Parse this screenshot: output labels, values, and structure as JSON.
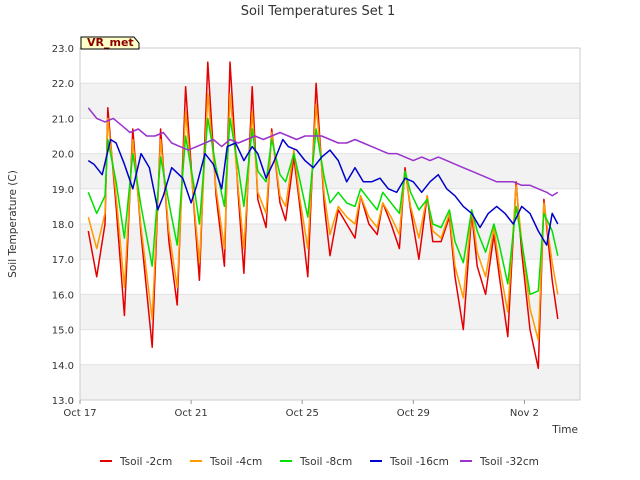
{
  "chart_data": {
    "type": "line",
    "title": "Soil Temperatures Set 1",
    "xlabel": "Time",
    "ylabel": "Soil Temperature (C)",
    "badge": "VR_met",
    "ylim": [
      13.0,
      23.0
    ],
    "y_ticks": [
      "13.0",
      "14.0",
      "15.0",
      "16.0",
      "17.0",
      "18.0",
      "19.0",
      "20.0",
      "21.0",
      "22.0",
      "23.0"
    ],
    "x_range_days": [
      0,
      18
    ],
    "x_ticks": [
      {
        "label": "Oct 17",
        "day": 0
      },
      {
        "label": "Oct 21",
        "day": 4
      },
      {
        "label": "Oct 25",
        "day": 8
      },
      {
        "label": "Oct 29",
        "day": 12
      },
      {
        "label": "Nov 2",
        "day": 16
      }
    ],
    "grid": "horizontal bands",
    "legend_position": "bottom",
    "series": [
      {
        "name": "Tsoil -2cm",
        "color": "#e50000",
        "x": [
          0.3,
          0.6,
          0.9,
          1.0,
          1.3,
          1.6,
          1.9,
          2.2,
          2.6,
          2.9,
          3.2,
          3.5,
          3.8,
          4.1,
          4.3,
          4.6,
          4.9,
          5.2,
          5.4,
          5.7,
          5.9,
          6.2,
          6.4,
          6.7,
          6.9,
          7.2,
          7.4,
          7.7,
          7.9,
          8.2,
          8.5,
          8.8,
          9.0,
          9.3,
          9.6,
          9.9,
          10.1,
          10.4,
          10.7,
          10.9,
          11.2,
          11.5,
          11.7,
          11.9,
          12.2,
          12.5,
          12.7,
          13.0,
          13.3,
          13.5,
          13.8,
          14.1,
          14.3,
          14.6,
          14.9,
          15.1,
          15.4,
          15.7,
          15.9,
          16.2,
          16.5,
          16.7,
          17.0,
          17.2
        ],
        "y": [
          17.8,
          16.5,
          18.0,
          21.3,
          18.5,
          15.4,
          20.7,
          17.7,
          14.5,
          20.7,
          17.5,
          15.7,
          21.9,
          18.5,
          16.4,
          22.6,
          18.8,
          16.8,
          22.6,
          18.8,
          16.6,
          21.9,
          18.7,
          17.9,
          20.7,
          18.6,
          18.1,
          19.9,
          18.6,
          16.5,
          22.0,
          18.5,
          17.1,
          18.4,
          18.0,
          17.6,
          18.8,
          18.0,
          17.7,
          18.6,
          18.0,
          17.3,
          19.6,
          18.4,
          17.0,
          18.8,
          17.5,
          17.5,
          18.2,
          16.5,
          15.0,
          18.3,
          16.8,
          16.0,
          17.7,
          16.5,
          14.8,
          19.2,
          17.2,
          15.0,
          13.9,
          18.7,
          16.4,
          15.3
        ]
      },
      {
        "name": "Tsoil -4cm",
        "color": "#ff9a00",
        "x": [
          0.3,
          0.6,
          0.9,
          1.0,
          1.3,
          1.6,
          1.9,
          2.2,
          2.6,
          2.9,
          3.2,
          3.5,
          3.8,
          4.1,
          4.3,
          4.6,
          4.9,
          5.2,
          5.4,
          5.7,
          5.9,
          6.2,
          6.4,
          6.7,
          6.9,
          7.2,
          7.4,
          7.7,
          7.9,
          8.2,
          8.5,
          8.8,
          9.0,
          9.3,
          9.6,
          9.9,
          10.1,
          10.4,
          10.7,
          10.9,
          11.2,
          11.5,
          11.7,
          11.9,
          12.2,
          12.5,
          12.7,
          13.0,
          13.3,
          13.5,
          13.8,
          14.1,
          14.3,
          14.6,
          14.9,
          15.1,
          15.4,
          15.7,
          15.9,
          16.2,
          16.5,
          16.7,
          17.0,
          17.2
        ],
        "y": [
          18.2,
          17.3,
          18.3,
          21.0,
          18.8,
          16.2,
          20.4,
          17.9,
          15.3,
          20.4,
          17.8,
          16.2,
          21.2,
          18.6,
          16.9,
          21.7,
          19.0,
          17.3,
          21.7,
          19.0,
          17.3,
          21.2,
          18.9,
          18.3,
          20.6,
          18.8,
          18.5,
          20.1,
          18.8,
          17.3,
          21.4,
          18.8,
          17.7,
          18.5,
          18.2,
          18.0,
          18.8,
          18.2,
          17.9,
          18.6,
          18.2,
          17.7,
          19.5,
          18.5,
          17.6,
          18.8,
          17.8,
          17.6,
          18.3,
          16.8,
          15.9,
          18.4,
          17.2,
          16.5,
          17.9,
          16.8,
          15.5,
          19.1,
          17.5,
          15.6,
          14.7,
          18.6,
          16.9,
          16.0
        ]
      },
      {
        "name": "Tsoil -8cm",
        "color": "#00e000",
        "x": [
          0.3,
          0.6,
          0.9,
          1.0,
          1.3,
          1.6,
          1.9,
          2.2,
          2.6,
          2.9,
          3.2,
          3.5,
          3.8,
          4.1,
          4.3,
          4.6,
          4.9,
          5.2,
          5.4,
          5.7,
          5.9,
          6.2,
          6.4,
          6.7,
          6.9,
          7.2,
          7.4,
          7.7,
          7.9,
          8.2,
          8.5,
          8.8,
          9.0,
          9.3,
          9.6,
          9.9,
          10.1,
          10.4,
          10.7,
          10.9,
          11.2,
          11.5,
          11.7,
          11.9,
          12.2,
          12.5,
          12.7,
          13.0,
          13.3,
          13.5,
          13.8,
          14.1,
          14.3,
          14.6,
          14.9,
          15.1,
          15.4,
          15.7,
          15.9,
          16.2,
          16.5,
          16.7,
          17.0,
          17.2
        ],
        "y": [
          18.9,
          18.3,
          18.8,
          20.4,
          19.2,
          17.6,
          20.0,
          18.5,
          16.8,
          19.9,
          18.6,
          17.4,
          20.5,
          19.1,
          18.0,
          21.0,
          19.6,
          18.5,
          21.0,
          19.6,
          18.5,
          20.7,
          19.5,
          19.2,
          20.4,
          19.4,
          19.2,
          20.0,
          19.3,
          18.2,
          20.7,
          19.3,
          18.6,
          18.9,
          18.6,
          18.5,
          19.0,
          18.7,
          18.4,
          18.9,
          18.6,
          18.3,
          19.5,
          18.9,
          18.4,
          18.7,
          18.0,
          17.9,
          18.4,
          17.5,
          16.9,
          18.4,
          17.8,
          17.2,
          18.0,
          17.4,
          16.3,
          18.5,
          17.5,
          16.0,
          16.1,
          18.3,
          17.8,
          17.1
        ]
      },
      {
        "name": "Tsoil -16cm",
        "color": "#0000cc",
        "x": [
          0.3,
          0.5,
          0.8,
          1.1,
          1.3,
          1.6,
          1.9,
          2.2,
          2.5,
          2.8,
          3.0,
          3.3,
          3.7,
          4.0,
          4.2,
          4.5,
          4.8,
          5.1,
          5.3,
          5.6,
          5.9,
          6.2,
          6.4,
          6.7,
          7.0,
          7.3,
          7.5,
          7.8,
          8.1,
          8.4,
          8.7,
          9.0,
          9.3,
          9.6,
          9.9,
          10.2,
          10.5,
          10.8,
          11.1,
          11.4,
          11.7,
          12.0,
          12.3,
          12.6,
          12.9,
          13.2,
          13.5,
          13.8,
          14.1,
          14.4,
          14.7,
          15.0,
          15.3,
          15.6,
          15.9,
          16.2,
          16.5,
          16.8,
          17.0,
          17.2
        ],
        "y": [
          19.8,
          19.7,
          19.4,
          20.4,
          20.3,
          19.7,
          19.0,
          20.0,
          19.6,
          18.4,
          18.8,
          19.6,
          19.3,
          18.6,
          19.1,
          20.0,
          19.7,
          19.0,
          20.2,
          20.3,
          19.8,
          20.2,
          20.0,
          19.3,
          19.8,
          20.4,
          20.2,
          20.1,
          19.8,
          19.6,
          19.9,
          20.1,
          19.8,
          19.2,
          19.6,
          19.2,
          19.2,
          19.3,
          19.0,
          18.9,
          19.3,
          19.2,
          18.9,
          19.2,
          19.4,
          19.0,
          18.8,
          18.5,
          18.3,
          17.9,
          18.3,
          18.5,
          18.3,
          18.0,
          18.5,
          18.3,
          17.8,
          17.4,
          18.3,
          18.0
        ]
      },
      {
        "name": "Tsoil -32cm",
        "color": "#9933cc",
        "x": [
          0.3,
          0.6,
          0.9,
          1.2,
          1.5,
          1.8,
          2.1,
          2.4,
          2.7,
          3.0,
          3.3,
          3.6,
          3.9,
          4.2,
          4.5,
          4.8,
          5.1,
          5.4,
          5.7,
          6.0,
          6.3,
          6.6,
          6.9,
          7.2,
          7.5,
          7.8,
          8.1,
          8.4,
          8.7,
          9.0,
          9.3,
          9.6,
          9.9,
          10.2,
          10.5,
          10.8,
          11.1,
          11.4,
          11.7,
          12.0,
          12.3,
          12.6,
          12.9,
          13.2,
          13.5,
          13.8,
          14.1,
          14.4,
          14.7,
          15.0,
          15.3,
          15.6,
          15.9,
          16.2,
          16.5,
          16.8,
          17.0,
          17.2
        ],
        "y": [
          21.3,
          21.0,
          20.9,
          21.0,
          20.8,
          20.6,
          20.7,
          20.5,
          20.5,
          20.6,
          20.3,
          20.2,
          20.1,
          20.2,
          20.3,
          20.4,
          20.2,
          20.4,
          20.3,
          20.4,
          20.5,
          20.4,
          20.5,
          20.6,
          20.5,
          20.4,
          20.5,
          20.5,
          20.5,
          20.4,
          20.3,
          20.3,
          20.4,
          20.3,
          20.2,
          20.1,
          20.0,
          20.0,
          19.9,
          19.8,
          19.9,
          19.8,
          19.9,
          19.8,
          19.7,
          19.6,
          19.5,
          19.4,
          19.3,
          19.2,
          19.2,
          19.2,
          19.1,
          19.1,
          19.0,
          18.9,
          18.8,
          18.9
        ]
      }
    ]
  }
}
